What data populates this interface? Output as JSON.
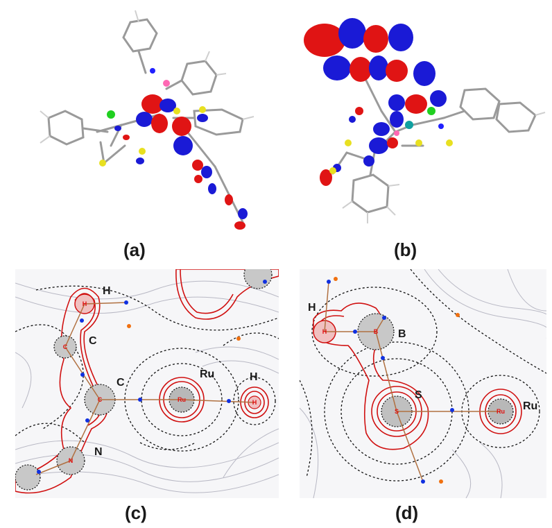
{
  "captions": {
    "a": "(a)",
    "b": "(b)",
    "c": "(c)",
    "d": "(d)"
  },
  "panel_c": {
    "labels": {
      "h_top": "H",
      "c_upper": "C",
      "c_lower": "C",
      "n": "N",
      "ru": "Ru",
      "h_right": "H"
    },
    "nucleus_marks": {
      "h": "H",
      "c": "C",
      "n": "N",
      "ru": "Ru"
    }
  },
  "panel_d": {
    "labels": {
      "h": "H",
      "b": "B",
      "s": "S",
      "ru": "Ru"
    },
    "nucleus_marks": {
      "h": "H",
      "b": "B",
      "s": "S",
      "ru": "Ru"
    }
  },
  "colors": {
    "orbital_positive": "#e01414",
    "orbital_negative": "#1a1ad6",
    "contour_red": "#d01010",
    "contour_dashed": "#111111",
    "contour_gray": "#b8b8c4",
    "bond_path": "#b07040",
    "bcp_blue": "#1030e0",
    "rcp_orange": "#f07010",
    "sulfur": "#e8e020",
    "boron": "#ff69b4",
    "nitrogen": "#2020ff",
    "ruthenium": "#10a0a0",
    "chlorine": "#20d020"
  }
}
